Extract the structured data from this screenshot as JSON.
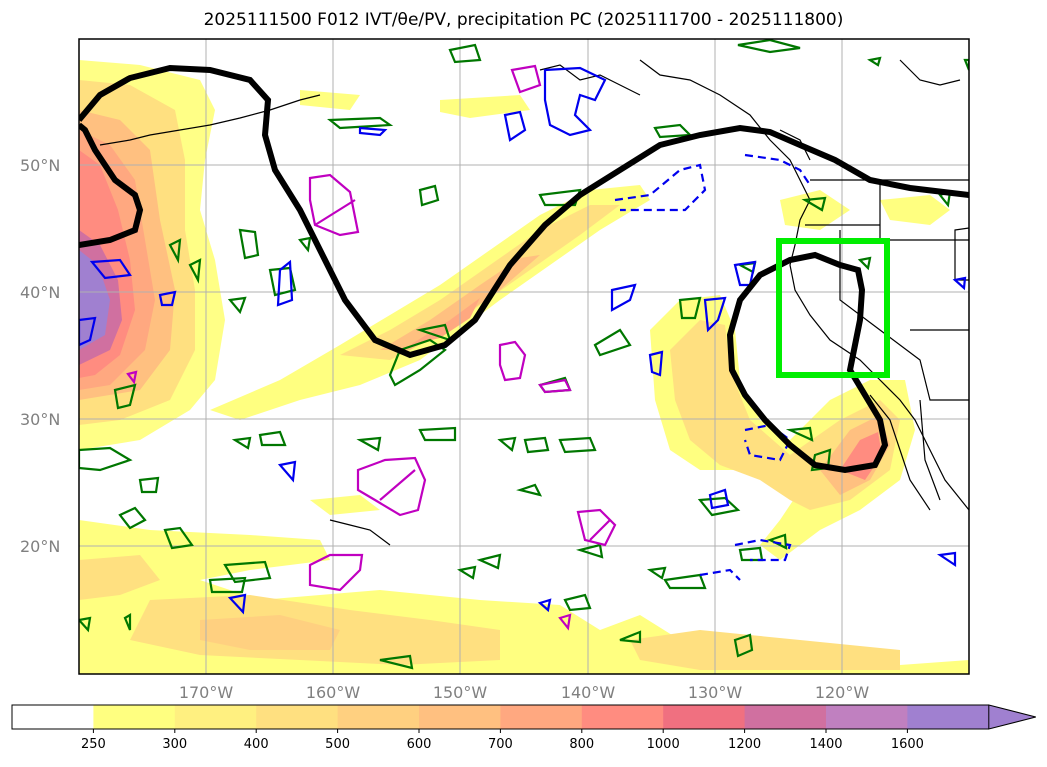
{
  "title": "2025111500 F012 IVT/θe/PV, precipitation PC (2025111700 - 2025111800)",
  "map": {
    "lat_labels": [
      "50°N",
      "40°N",
      "30°N",
      "20°N"
    ],
    "lon_labels": [
      "170°W",
      "160°W",
      "150°W",
      "140°W",
      "130°W",
      "120°W"
    ],
    "extent": {
      "lon": [
        -180,
        -110
      ],
      "lat": [
        10,
        60
      ]
    },
    "focus_box": {
      "lon": [
        -125,
        -116.5
      ],
      "lat": [
        33.5,
        44
      ]
    },
    "colors": {
      "jet_line": "#000000",
      "focus_box": "#00ee00",
      "theta_e": "#007700",
      "pv_blue": "#0000ee",
      "pv_magenta": "#c000c0",
      "coast": "#000000"
    }
  },
  "colorbar": {
    "ticks": [
      "250",
      "300",
      "400",
      "500",
      "600",
      "700",
      "800",
      "1000",
      "1200",
      "1400",
      "1600"
    ],
    "colors": [
      "#ffffff",
      "#ffff80",
      "#fff080",
      "#ffe080",
      "#ffd080",
      "#ffc080",
      "#ffa880",
      "#ff8c80",
      "#f07080",
      "#d070a0",
      "#c080c0",
      "#a080d0"
    ],
    "extend": "max"
  }
}
